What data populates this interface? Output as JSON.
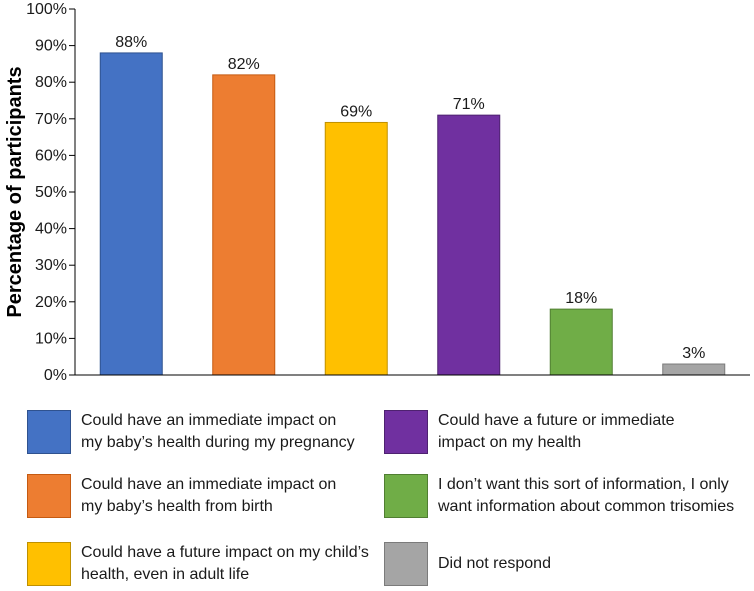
{
  "chart_data": {
    "type": "bar",
    "title": "",
    "xlabel": "",
    "ylabel": "Percentage of participants",
    "ylim": [
      0,
      100
    ],
    "y_ticks": [
      "0%",
      "10%",
      "20%",
      "30%",
      "40%",
      "50%",
      "60%",
      "70%",
      "80%",
      "90%",
      "100%"
    ],
    "grid": false,
    "categories": [
      "Could have an immediate impact on my baby's health during my pregnancy",
      "Could have an immediate impact on my baby's health from birth",
      "Could have a future impact on my child's health, even in adult life",
      "Could have a future or immediate impact on my health",
      "I don't want this sort of information, I only want information about common trisomies",
      "Did not respond"
    ],
    "values": [
      88,
      82,
      69,
      71,
      18,
      3
    ],
    "data_labels": [
      "88%",
      "82%",
      "69%",
      "71%",
      "18%",
      "3%"
    ],
    "colors": [
      "#4472c4",
      "#ed7d31",
      "#ffc000",
      "#7030a0",
      "#70ad47",
      "#a5a5a5"
    ],
    "border_colors": [
      "#2f528f",
      "#c55a11",
      "#bf9000",
      "#4e2270",
      "#507e32",
      "#7b7b7b"
    ],
    "legend": {
      "placement": "bottom",
      "entries": [
        "Could have an immediate impact on\nmy baby’s health during my pregnancy",
        "Could have an immediate impact on\nmy baby’s health from birth",
        "Could have a future impact on my child’s\nhealth, even in adult life",
        "Could have a future or immediate\nimpact on my health",
        "I don’t want this sort of information, I only\nwant information about common trisomies",
        "Did not respond"
      ]
    }
  }
}
